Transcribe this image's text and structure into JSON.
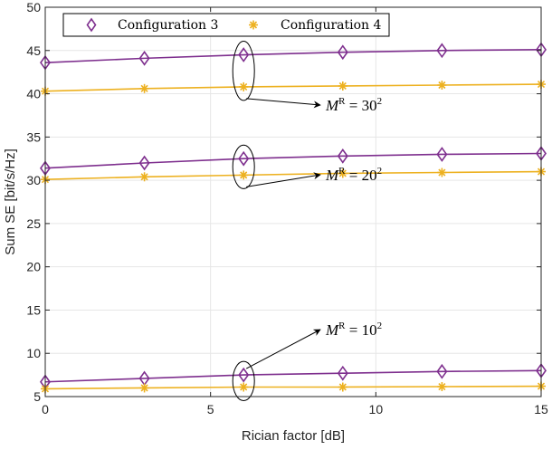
{
  "chart_data": {
    "type": "line",
    "title": "",
    "xlabel": "Rician factor [dB]",
    "ylabel": "Sum SE [bit/s/Hz]",
    "xlim": [
      0,
      15
    ],
    "ylim": [
      5,
      50
    ],
    "xticks": [
      "0",
      "5",
      "10",
      "15"
    ],
    "yticks": [
      "5",
      "10",
      "15",
      "20",
      "25",
      "30",
      "35",
      "40",
      "45",
      "50"
    ],
    "grid": true,
    "legend_position": "top-left",
    "x": [
      0,
      3,
      6,
      9,
      12,
      15
    ],
    "series": [
      {
        "name": "Configuration 3",
        "group": "M^R = 30^2",
        "marker": "diamond",
        "color": "#7E2F8E",
        "values": [
          43.6,
          44.1,
          44.5,
          44.8,
          45.0,
          45.1
        ]
      },
      {
        "name": "Configuration 4",
        "group": "M^R = 30^2",
        "marker": "asterisk",
        "color": "#EDB120",
        "values": [
          40.3,
          40.6,
          40.8,
          40.9,
          41.0,
          41.1
        ]
      },
      {
        "name": "Configuration 3",
        "group": "M^R = 20^2",
        "marker": "diamond",
        "color": "#7E2F8E",
        "values": [
          31.4,
          32.0,
          32.5,
          32.8,
          33.0,
          33.1
        ]
      },
      {
        "name": "Configuration 4",
        "group": "M^R = 20^2",
        "marker": "asterisk",
        "color": "#EDB120",
        "values": [
          30.1,
          30.4,
          30.6,
          30.8,
          30.9,
          31.0
        ]
      },
      {
        "name": "Configuration 3",
        "group": "M^R = 10^2",
        "marker": "diamond",
        "color": "#7E2F8E",
        "values": [
          6.7,
          7.1,
          7.5,
          7.7,
          7.9,
          8.0
        ]
      },
      {
        "name": "Configuration 4",
        "group": "M^R = 10^2",
        "marker": "asterisk",
        "color": "#EDB120",
        "values": [
          5.9,
          6.0,
          6.1,
          6.1,
          6.15,
          6.2
        ]
      }
    ],
    "legend": [
      "Configuration 3",
      "Configuration 4"
    ],
    "annotations": [
      {
        "base": "M",
        "sup": "R",
        "rest": " = 30",
        "exp": "2"
      },
      {
        "base": "M",
        "sup": "R",
        "rest": " = 20",
        "exp": "2"
      },
      {
        "base": "M",
        "sup": "R",
        "rest": " = 10",
        "exp": "2"
      }
    ]
  }
}
